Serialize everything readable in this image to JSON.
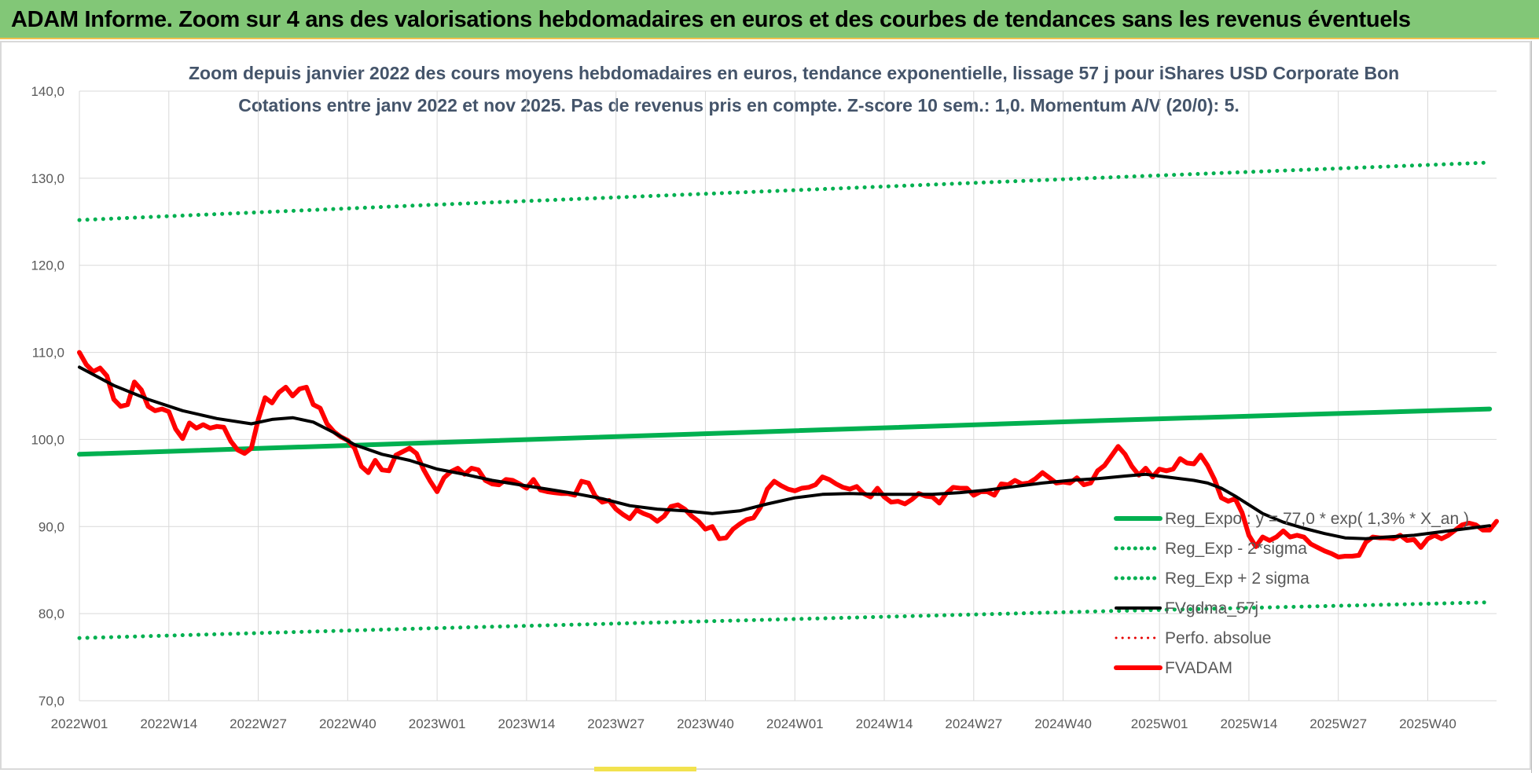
{
  "banner": {
    "title": "ADAM Informe. Zoom sur 4 ans des valorisations hebdomadaires en euros et des courbes de tendances sans les revenus éventuels",
    "bg_color": "#82c777"
  },
  "chart_data": {
    "type": "line",
    "title": "Zoom depuis janvier 2022 des cours moyens hebdomadaires en euros, tendance exponentielle, lissage 57 j pour iShares USD Corporate Bon",
    "subtitle": "Cotations entre janv 2022 et nov 2025. Pas de revenus pris en compte. Z-score 10 sem.: 1,0. Momentum A/V (20/0): 5.",
    "xlabel": "",
    "ylabel": "",
    "ylim": [
      70,
      140
    ],
    "yticks": [
      "70,0",
      "80,0",
      "90,0",
      "100,0",
      "110,0",
      "120,0",
      "130,0",
      "140,0"
    ],
    "xlim": [
      0,
      198
    ],
    "xticks": [
      {
        "i": 0,
        "label": "2022W01"
      },
      {
        "i": 13,
        "label": "2022W14"
      },
      {
        "i": 26,
        "label": "2022W27"
      },
      {
        "i": 39,
        "label": "2022W40"
      },
      {
        "i": 52,
        "label": "2023W01"
      },
      {
        "i": 65,
        "label": "2023W14"
      },
      {
        "i": 78,
        "label": "2023W27"
      },
      {
        "i": 91,
        "label": "2023W40"
      },
      {
        "i": 104,
        "label": "2024W01"
      },
      {
        "i": 117,
        "label": "2024W14"
      },
      {
        "i": 130,
        "label": "2024W27"
      },
      {
        "i": 143,
        "label": "2024W40"
      },
      {
        "i": 157,
        "label": "2025W01"
      },
      {
        "i": 170,
        "label": "2025W14"
      },
      {
        "i": 183,
        "label": "2025W27"
      },
      {
        "i": 196,
        "label": "2025W40"
      }
    ],
    "grid": true,
    "legend_position": "bottom-right",
    "series": [
      {
        "name": "Reg_Expo : y = 77,0 * exp( 1,3% *  X_an )",
        "style": "solid",
        "color": "#00b050",
        "width": 6,
        "points": [
          [
            0,
            98.3
          ],
          [
            50,
            99.6
          ],
          [
            100,
            100.9
          ],
          [
            150,
            102.2
          ],
          [
            205,
            103.5
          ]
        ]
      },
      {
        "name": "Reg_Exp - 2*sigma",
        "style": "dotted",
        "color": "#00b050",
        "width": 5,
        "points": [
          [
            0,
            77.2
          ],
          [
            50,
            78.3
          ],
          [
            100,
            79.3
          ],
          [
            150,
            80.3
          ],
          [
            205,
            81.3
          ]
        ]
      },
      {
        "name": "Reg_Exp + 2 sigma",
        "style": "dotted",
        "color": "#00b050",
        "width": 5,
        "points": [
          [
            0,
            125.2
          ],
          [
            50,
            126.9
          ],
          [
            100,
            128.5
          ],
          [
            150,
            130.1
          ],
          [
            205,
            131.8
          ]
        ]
      },
      {
        "name": "FVgdma_57j",
        "style": "solid",
        "color": "#000000",
        "width": 4,
        "points": [
          [
            0,
            108.3
          ],
          [
            5,
            106.2
          ],
          [
            10,
            104.6
          ],
          [
            15,
            103.3
          ],
          [
            20,
            102.4
          ],
          [
            25,
            101.8
          ],
          [
            28,
            102.3
          ],
          [
            31,
            102.5
          ],
          [
            34,
            102.0
          ],
          [
            37,
            100.8
          ],
          [
            40,
            99.4
          ],
          [
            44,
            98.3
          ],
          [
            48,
            97.6
          ],
          [
            52,
            96.6
          ],
          [
            56,
            96.0
          ],
          [
            60,
            95.3
          ],
          [
            64,
            94.8
          ],
          [
            68,
            94.3
          ],
          [
            72,
            93.8
          ],
          [
            76,
            93.2
          ],
          [
            80,
            92.4
          ],
          [
            84,
            92.0
          ],
          [
            88,
            91.8
          ],
          [
            92,
            91.5
          ],
          [
            96,
            91.8
          ],
          [
            100,
            92.6
          ],
          [
            104,
            93.3
          ],
          [
            108,
            93.7
          ],
          [
            112,
            93.8
          ],
          [
            116,
            93.7
          ],
          [
            120,
            93.7
          ],
          [
            124,
            93.7
          ],
          [
            128,
            93.9
          ],
          [
            132,
            94.2
          ],
          [
            136,
            94.6
          ],
          [
            140,
            95.0
          ],
          [
            144,
            95.3
          ],
          [
            148,
            95.5
          ],
          [
            152,
            95.8
          ],
          [
            155,
            96.0
          ],
          [
            158,
            95.7
          ],
          [
            162,
            95.3
          ],
          [
            164,
            95.0
          ],
          [
            166,
            94.4
          ],
          [
            168,
            93.5
          ],
          [
            170,
            92.5
          ],
          [
            172,
            91.5
          ],
          [
            175,
            90.5
          ],
          [
            178,
            89.8
          ],
          [
            181,
            89.2
          ],
          [
            184,
            88.7
          ],
          [
            187,
            88.6
          ],
          [
            190,
            88.8
          ],
          [
            194,
            89.0
          ],
          [
            198,
            89.4
          ],
          [
            202,
            89.8
          ],
          [
            205,
            90.1
          ]
        ]
      },
      {
        "name": "Perfo. absolue",
        "style": "dotted",
        "color": "#e60000",
        "width": 3,
        "points": []
      },
      {
        "name": "FVADAM",
        "style": "solid",
        "color": "#ff0000",
        "width": 6,
        "points": [
          [
            0,
            110.0
          ],
          [
            1,
            108.6
          ],
          [
            2,
            107.8
          ],
          [
            3,
            108.2
          ],
          [
            4,
            107.3
          ],
          [
            5,
            104.6
          ],
          [
            6,
            103.8
          ],
          [
            7,
            104.0
          ],
          [
            8,
            106.6
          ],
          [
            9,
            105.7
          ],
          [
            10,
            103.8
          ],
          [
            11,
            103.3
          ],
          [
            12,
            103.5
          ],
          [
            13,
            103.2
          ],
          [
            14,
            101.2
          ],
          [
            15,
            100.1
          ],
          [
            16,
            101.9
          ],
          [
            17,
            101.3
          ],
          [
            18,
            101.7
          ],
          [
            19,
            101.3
          ],
          [
            20,
            101.5
          ],
          [
            21,
            101.4
          ],
          [
            22,
            99.8
          ],
          [
            23,
            98.8
          ],
          [
            24,
            98.4
          ],
          [
            25,
            99.0
          ],
          [
            26,
            102.3
          ],
          [
            27,
            104.8
          ],
          [
            28,
            104.2
          ],
          [
            29,
            105.4
          ],
          [
            30,
            106.0
          ],
          [
            31,
            105.0
          ],
          [
            32,
            105.8
          ],
          [
            33,
            106.0
          ],
          [
            34,
            104.0
          ],
          [
            35,
            103.6
          ],
          [
            36,
            101.8
          ],
          [
            37,
            100.9
          ],
          [
            38,
            100.3
          ],
          [
            39,
            99.9
          ],
          [
            40,
            99.0
          ],
          [
            41,
            96.9
          ],
          [
            42,
            96.2
          ],
          [
            43,
            97.6
          ],
          [
            44,
            96.5
          ],
          [
            45,
            96.4
          ],
          [
            46,
            98.2
          ],
          [
            47,
            98.6
          ],
          [
            48,
            99.0
          ],
          [
            49,
            98.4
          ],
          [
            50,
            96.6
          ],
          [
            51,
            95.2
          ],
          [
            52,
            94.0
          ],
          [
            53,
            95.6
          ],
          [
            54,
            96.3
          ],
          [
            55,
            96.7
          ],
          [
            56,
            96.0
          ],
          [
            57,
            96.7
          ],
          [
            58,
            96.5
          ],
          [
            59,
            95.3
          ],
          [
            60,
            94.9
          ],
          [
            61,
            94.8
          ],
          [
            62,
            95.4
          ],
          [
            63,
            95.3
          ],
          [
            64,
            94.9
          ],
          [
            65,
            94.4
          ],
          [
            66,
            95.4
          ],
          [
            67,
            94.2
          ],
          [
            68,
            94.0
          ],
          [
            69,
            93.9
          ],
          [
            70,
            93.8
          ],
          [
            71,
            93.8
          ],
          [
            72,
            93.6
          ],
          [
            73,
            95.2
          ],
          [
            74,
            95.0
          ],
          [
            75,
            93.5
          ],
          [
            76,
            92.8
          ],
          [
            77,
            93.0
          ],
          [
            78,
            92.0
          ],
          [
            79,
            91.4
          ],
          [
            80,
            90.9
          ],
          [
            81,
            91.9
          ],
          [
            82,
            91.5
          ],
          [
            83,
            91.2
          ],
          [
            84,
            90.6
          ],
          [
            85,
            91.2
          ],
          [
            86,
            92.3
          ],
          [
            87,
            92.5
          ],
          [
            88,
            92.0
          ],
          [
            89,
            91.2
          ],
          [
            90,
            90.6
          ],
          [
            91,
            89.7
          ],
          [
            92,
            90.0
          ],
          [
            93,
            88.6
          ],
          [
            94,
            88.7
          ],
          [
            95,
            89.7
          ],
          [
            96,
            90.3
          ],
          [
            97,
            90.8
          ],
          [
            98,
            91.0
          ],
          [
            99,
            92.2
          ],
          [
            100,
            94.3
          ],
          [
            101,
            95.2
          ],
          [
            102,
            94.7
          ],
          [
            103,
            94.3
          ],
          [
            104,
            94.1
          ],
          [
            105,
            94.4
          ],
          [
            106,
            94.5
          ],
          [
            107,
            94.8
          ],
          [
            108,
            95.7
          ],
          [
            109,
            95.4
          ],
          [
            110,
            94.9
          ],
          [
            111,
            94.5
          ],
          [
            112,
            94.3
          ],
          [
            113,
            94.6
          ],
          [
            114,
            93.8
          ],
          [
            115,
            93.4
          ],
          [
            116,
            94.4
          ],
          [
            117,
            93.4
          ],
          [
            118,
            92.8
          ],
          [
            119,
            92.9
          ],
          [
            120,
            92.6
          ],
          [
            121,
            93.1
          ],
          [
            122,
            93.8
          ],
          [
            123,
            93.5
          ],
          [
            124,
            93.4
          ],
          [
            125,
            92.7
          ],
          [
            126,
            93.8
          ],
          [
            127,
            94.5
          ],
          [
            128,
            94.4
          ],
          [
            129,
            94.4
          ],
          [
            130,
            93.6
          ],
          [
            131,
            94.0
          ],
          [
            132,
            94.0
          ],
          [
            133,
            93.6
          ],
          [
            134,
            94.9
          ],
          [
            135,
            94.8
          ],
          [
            136,
            95.3
          ],
          [
            137,
            94.9
          ],
          [
            138,
            95.0
          ],
          [
            139,
            95.5
          ],
          [
            140,
            96.2
          ],
          [
            141,
            95.6
          ],
          [
            142,
            95.0
          ],
          [
            143,
            95.1
          ],
          [
            144,
            95.0
          ],
          [
            145,
            95.6
          ],
          [
            146,
            94.8
          ],
          [
            147,
            95.0
          ],
          [
            148,
            96.4
          ],
          [
            149,
            97.0
          ],
          [
            150,
            98.1
          ],
          [
            151,
            99.2
          ],
          [
            152,
            98.3
          ],
          [
            153,
            96.9
          ],
          [
            154,
            95.9
          ],
          [
            155,
            96.7
          ],
          [
            156,
            95.7
          ],
          [
            157,
            96.6
          ],
          [
            158,
            96.4
          ],
          [
            159,
            96.6
          ],
          [
            160,
            97.8
          ],
          [
            161,
            97.3
          ],
          [
            162,
            97.2
          ],
          [
            163,
            98.2
          ],
          [
            164,
            97.0
          ],
          [
            165,
            95.4
          ],
          [
            166,
            93.3
          ],
          [
            167,
            92.9
          ],
          [
            168,
            93.2
          ],
          [
            169,
            91.6
          ],
          [
            170,
            89.0
          ],
          [
            171,
            87.7
          ],
          [
            172,
            88.8
          ],
          [
            173,
            88.4
          ],
          [
            174,
            88.8
          ],
          [
            175,
            89.5
          ],
          [
            176,
            88.8
          ],
          [
            177,
            89.0
          ],
          [
            178,
            88.8
          ],
          [
            179,
            88.0
          ],
          [
            180,
            87.6
          ],
          [
            181,
            87.2
          ],
          [
            182,
            86.9
          ],
          [
            183,
            86.5
          ],
          [
            184,
            86.6
          ],
          [
            185,
            86.6
          ],
          [
            186,
            86.7
          ],
          [
            187,
            88.2
          ],
          [
            188,
            88.8
          ],
          [
            189,
            88.7
          ],
          [
            190,
            88.7
          ],
          [
            191,
            88.6
          ],
          [
            192,
            89.0
          ],
          [
            193,
            88.4
          ],
          [
            194,
            88.5
          ],
          [
            195,
            87.6
          ],
          [
            196,
            88.6
          ],
          [
            197,
            89.0
          ],
          [
            198,
            88.6
          ],
          [
            199,
            89.0
          ],
          [
            200,
            89.6
          ],
          [
            201,
            90.2
          ],
          [
            202,
            90.4
          ],
          [
            203,
            90.2
          ],
          [
            204,
            89.6
          ],
          [
            205,
            89.6
          ],
          [
            206,
            90.6
          ]
        ]
      }
    ]
  }
}
